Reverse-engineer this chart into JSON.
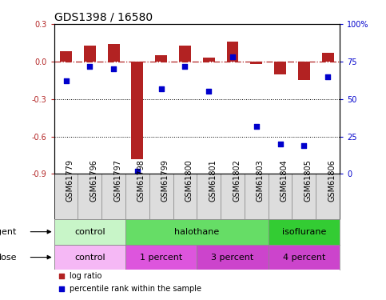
{
  "title": "GDS1398 / 16580",
  "samples": [
    "GSM61779",
    "GSM61796",
    "GSM61797",
    "GSM61798",
    "GSM61799",
    "GSM61800",
    "GSM61801",
    "GSM61802",
    "GSM61803",
    "GSM61804",
    "GSM61805",
    "GSM61806"
  ],
  "log_ratio": [
    0.08,
    0.13,
    0.14,
    -0.78,
    0.05,
    0.13,
    0.03,
    0.16,
    -0.02,
    -0.1,
    -0.15,
    0.07
  ],
  "percentile": [
    62,
    72,
    70,
    2,
    57,
    72,
    55,
    78,
    32,
    20,
    19,
    65
  ],
  "bar_color": "#b22222",
  "dot_color": "#0000cc",
  "ylim_left": [
    -0.9,
    0.3
  ],
  "ylim_right": [
    0,
    100
  ],
  "yticks_left": [
    0.3,
    0.0,
    -0.3,
    -0.6,
    -0.9
  ],
  "yticks_right": [
    100,
    75,
    50,
    25,
    0
  ],
  "agent_colors": {
    "control": "#c8f5c8",
    "halothane": "#66dd66",
    "isoflurane": "#33cc33"
  },
  "dose_colors": {
    "control": "#f5b8f5",
    "1 percent": "#dd55dd",
    "3 percent": "#cc44cc",
    "4 percent": "#cc44cc"
  },
  "agent_groups": [
    {
      "label": "control",
      "start": 0,
      "end": 3
    },
    {
      "label": "halothane",
      "start": 3,
      "end": 9
    },
    {
      "label": "isoflurane",
      "start": 9,
      "end": 12
    }
  ],
  "dose_groups": [
    {
      "label": "control",
      "start": 0,
      "end": 3
    },
    {
      "label": "1 percent",
      "start": 3,
      "end": 6
    },
    {
      "label": "3 percent",
      "start": 6,
      "end": 9
    },
    {
      "label": "4 percent",
      "start": 9,
      "end": 12
    }
  ],
  "background_color": "#ffffff",
  "xticklabel_bg": "#dddddd",
  "title_fontsize": 10,
  "tick_fontsize": 7,
  "label_fontsize": 8,
  "row_fontsize": 8
}
